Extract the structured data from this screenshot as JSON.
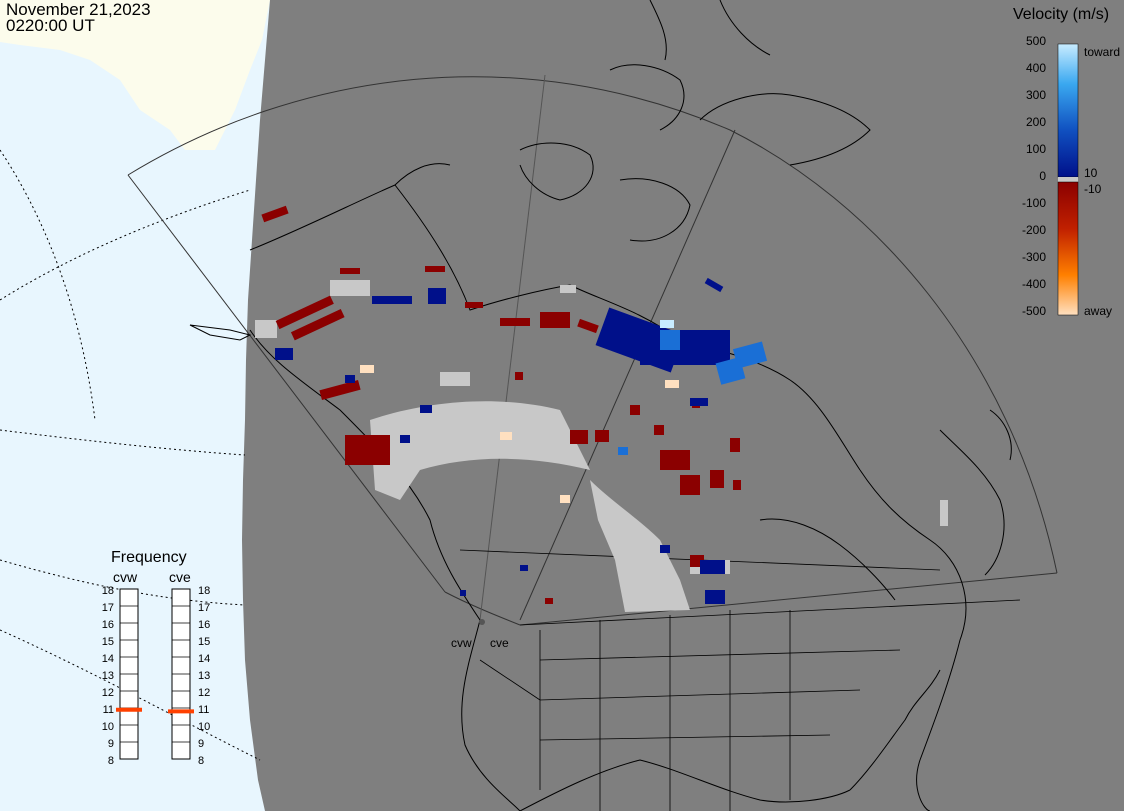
{
  "header": {
    "date": "November 21,2023",
    "time": "0220:00 UT"
  },
  "velocity_scale": {
    "title": "Velocity (m/s)",
    "ticks": [
      "500",
      "400",
      "300",
      "200",
      "100",
      "0",
      "-100",
      "-200",
      "-300",
      "-400",
      "-500"
    ],
    "pos_threshold": "10",
    "neg_threshold": "-10",
    "toward_label": "toward",
    "away_label": "away",
    "colors": {
      "toward_max": "#c8ecff",
      "toward_mid": "#1a6fd6",
      "toward_low": "#00108a",
      "zero": "#c8c8c8",
      "away_low": "#8b0000",
      "away_mid": "#e06010",
      "away_max": "#ffe0c0"
    }
  },
  "frequency": {
    "title": "Frequency",
    "radars": [
      {
        "name": "cvw",
        "value_mhz": 10.9
      },
      {
        "name": "cve",
        "value_mhz": 10.8
      }
    ],
    "scale": [
      "18",
      "17",
      "16",
      "15",
      "14",
      "13",
      "12",
      "11",
      "10",
      "9",
      "8"
    ]
  },
  "radar_sites": [
    {
      "name": "cvw"
    },
    {
      "name": "cve"
    }
  ],
  "colors": {
    "night": "#7f7f7f",
    "day_ocean": "#e8f6fe",
    "day_land": "#fcfcec",
    "ground_scatter": "#c8c8c8",
    "marker": "#ff4000"
  }
}
